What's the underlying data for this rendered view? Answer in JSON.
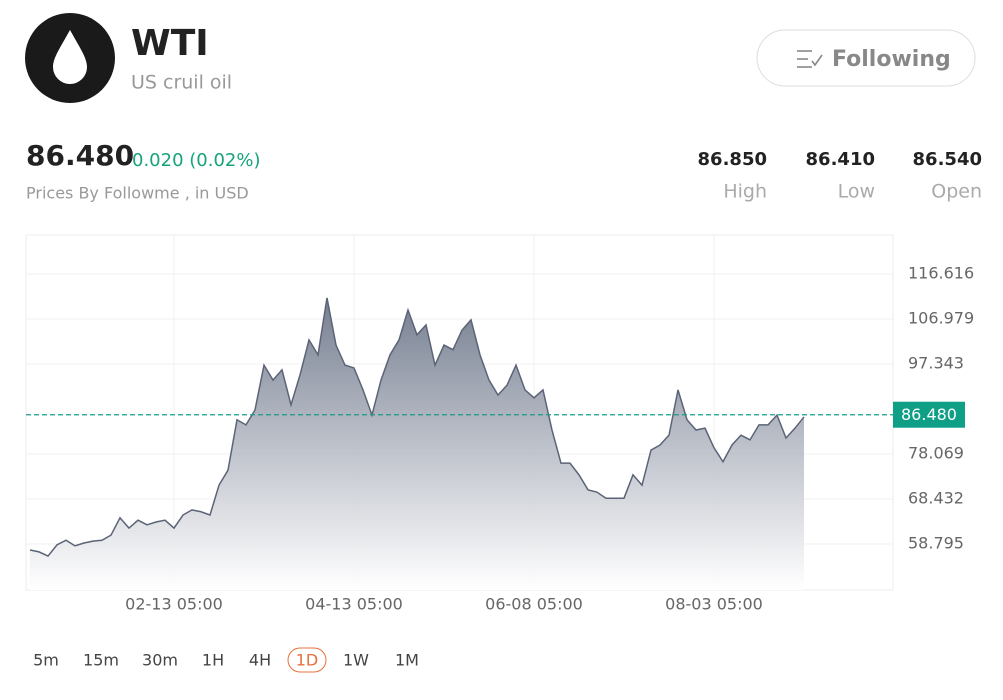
{
  "header": {
    "title": "WTI",
    "subtitle": "US cruil oil",
    "button": "Following"
  },
  "quote": {
    "price": "86.480",
    "change": "0.020 (0.02%)",
    "note": "Prices By Followme , in USD"
  },
  "stats": [
    {
      "value": "86.850",
      "label": "High"
    },
    {
      "value": "86.410",
      "label": "Low"
    },
    {
      "value": "86.540",
      "label": "Open"
    }
  ],
  "chart_data": {
    "type": "area",
    "color": "#5b6477",
    "categories": [
      null,
      null,
      null,
      null,
      null,
      null,
      null,
      null,
      null,
      null,
      null,
      null,
      null,
      null,
      null,
      null,
      "02-13 05:00",
      null,
      null,
      null,
      null,
      null,
      null,
      null,
      null,
      null,
      null,
      null,
      null,
      null,
      null,
      null,
      null,
      null,
      null,
      null,
      "04-13 05:00",
      null,
      null,
      null,
      null,
      null,
      null,
      null,
      null,
      null,
      null,
      null,
      null,
      null,
      null,
      null,
      null,
      null,
      null,
      null,
      "06-08 05:00",
      null,
      null,
      null,
      null,
      null,
      null,
      null,
      null,
      null,
      null,
      null,
      null,
      null,
      null,
      null,
      null,
      null,
      null,
      null,
      "08-03 05:00",
      null,
      null,
      null,
      null,
      null,
      null,
      null,
      null,
      null,
      null
    ],
    "values": [
      57.5,
      57.1,
      56.2,
      58.6,
      59.6,
      58.4,
      59.0,
      59.4,
      59.6,
      60.7,
      64.4,
      62.2,
      63.9,
      62.9,
      63.5,
      63.9,
      62.2,
      65.0,
      66.1,
      65.7,
      65.0,
      71.4,
      74.6,
      85.4,
      84.3,
      87.5,
      97.1,
      93.9,
      96.1,
      88.6,
      95.0,
      102.5,
      99.3,
      111.5,
      101.4,
      97.1,
      96.5,
      91.8,
      86.4,
      93.9,
      99.3,
      102.5,
      108.9,
      103.6,
      105.7,
      97.1,
      101.4,
      100.4,
      104.6,
      106.8,
      99.3,
      93.9,
      90.7,
      92.8,
      97.1,
      91.8,
      90.1,
      91.8,
      83.2,
      76.1,
      76.1,
      73.6,
      70.4,
      69.9,
      68.6,
      68.6,
      68.6,
      73.6,
      71.4,
      78.9,
      80.0,
      82.1,
      91.8,
      85.4,
      83.2,
      83.6,
      79.4,
      76.4,
      80.0,
      82.1,
      81.1,
      84.3,
      84.3,
      86.4,
      81.5,
      83.6,
      86.0
    ],
    "ylim": [
      48.94,
      124.97
    ],
    "yticks": [
      58.795,
      68.432,
      78.069,
      97.343,
      106.979,
      116.616
    ],
    "current": {
      "value": 86.48,
      "label": "86.480"
    },
    "grid": true
  },
  "timeframes": [
    "5m",
    "15m",
    "30m",
    "1H",
    "4H",
    "1D",
    "1W",
    "1M"
  ],
  "selected": 5
}
